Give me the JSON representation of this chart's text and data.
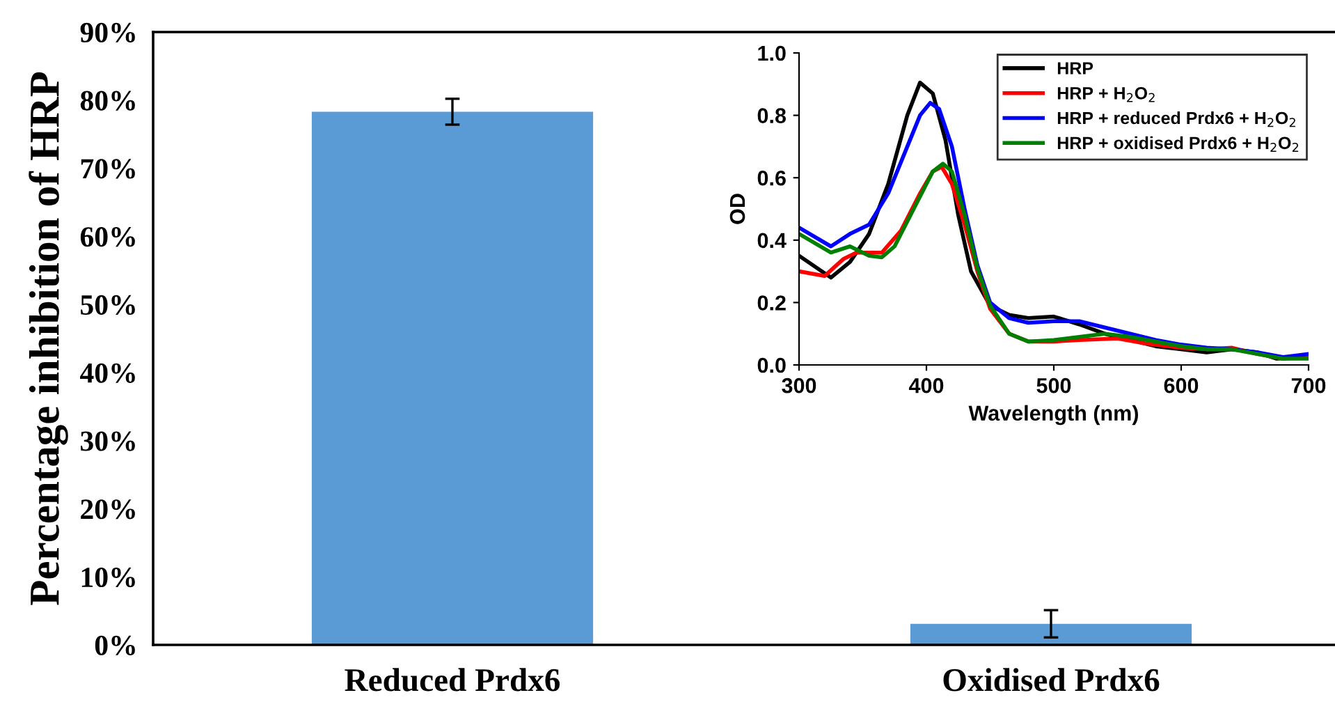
{
  "chart_data": [
    {
      "type": "bar",
      "ylabel": "Percentage inhibition of HRP",
      "categories": [
        "Reduced Prdx6",
        "Oxidised Prdx6"
      ],
      "values": [
        78.3,
        3.1
      ],
      "color": "#5b9bd5",
      "errors": [
        1.9,
        2.0
      ],
      "ylim": [
        0,
        90
      ],
      "yticks": [
        {
          "value": 0,
          "label": "0%"
        },
        {
          "value": 10,
          "label": "10%"
        },
        {
          "value": 20,
          "label": "20%"
        },
        {
          "value": 30,
          "label": "30%"
        },
        {
          "value": 40,
          "label": "40%"
        },
        {
          "value": 50,
          "label": "50%"
        },
        {
          "value": 60,
          "label": "60%"
        },
        {
          "value": 70,
          "label": "70%"
        },
        {
          "value": 80,
          "label": "80%"
        },
        {
          "value": 90,
          "label": "90%"
        }
      ],
      "grid": false
    },
    {
      "type": "line",
      "xlabel": "Wavelength (nm)",
      "ylabel": "OD",
      "xlim": [
        300,
        700
      ],
      "xticks": [
        300,
        400,
        500,
        600,
        700
      ],
      "ylim": [
        0,
        1
      ],
      "yticks": [
        {
          "value": 0,
          "label": "0.0"
        },
        0.2,
        0.4,
        0.6,
        0.8,
        {
          "value": 1,
          "label": "1.0"
        }
      ],
      "grid": false,
      "legend": "top right",
      "marker": "none",
      "line_style": "solid",
      "series": [
        {
          "name": "HRP",
          "color": "#000000",
          "x": [
            300,
            325,
            340,
            355,
            370,
            385,
            395,
            405,
            415,
            425,
            435,
            450,
            465,
            480,
            500,
            520,
            540,
            560,
            580,
            600,
            620,
            640,
            660,
            675,
            700
          ],
          "values": [
            0.35,
            0.28,
            0.33,
            0.42,
            0.58,
            0.8,
            0.905,
            0.87,
            0.72,
            0.48,
            0.3,
            0.19,
            0.16,
            0.15,
            0.155,
            0.13,
            0.1,
            0.08,
            0.06,
            0.05,
            0.04,
            0.05,
            0.04,
            0.02,
            0.025
          ]
        },
        {
          "name": "HRP + H$_{2}$O$_{2}$",
          "color": "#ff0000",
          "x": [
            300,
            320,
            335,
            345,
            365,
            380,
            395,
            405,
            412,
            420,
            430,
            440,
            450,
            465,
            480,
            500,
            520,
            550,
            570,
            600,
            620,
            640,
            660,
            680,
            700
          ],
          "values": [
            0.3,
            0.285,
            0.34,
            0.36,
            0.36,
            0.43,
            0.55,
            0.62,
            0.635,
            0.58,
            0.45,
            0.3,
            0.18,
            0.1,
            0.075,
            0.075,
            0.08,
            0.085,
            0.07,
            0.055,
            0.05,
            0.055,
            0.035,
            0.02,
            0.025
          ]
        },
        {
          "name": "HRP + reduced Prdx6 + H$_{2}$O$_{2}$",
          "color": "#0000ff",
          "x": [
            300,
            325,
            340,
            355,
            370,
            385,
            395,
            403,
            410,
            420,
            430,
            440,
            450,
            465,
            480,
            500,
            520,
            540,
            560,
            580,
            600,
            620,
            640,
            660,
            680,
            700
          ],
          "values": [
            0.44,
            0.38,
            0.42,
            0.45,
            0.55,
            0.7,
            0.8,
            0.84,
            0.82,
            0.7,
            0.5,
            0.32,
            0.2,
            0.15,
            0.135,
            0.14,
            0.14,
            0.12,
            0.1,
            0.08,
            0.065,
            0.055,
            0.05,
            0.04,
            0.025,
            0.035
          ]
        },
        {
          "name": "HRP + oxidised Prdx6 + H$_{2}$O$_{2}$",
          "color": "#008000",
          "x": [
            300,
            325,
            340,
            355,
            365,
            375,
            390,
            405,
            413,
            420,
            430,
            440,
            450,
            465,
            480,
            500,
            520,
            540,
            560,
            580,
            600,
            620,
            640,
            660,
            680,
            700
          ],
          "values": [
            0.42,
            0.36,
            0.38,
            0.35,
            0.345,
            0.38,
            0.5,
            0.62,
            0.645,
            0.62,
            0.48,
            0.31,
            0.19,
            0.1,
            0.075,
            0.08,
            0.09,
            0.1,
            0.09,
            0.075,
            0.06,
            0.05,
            0.05,
            0.035,
            0.02,
            0.02
          ]
        }
      ]
    }
  ]
}
